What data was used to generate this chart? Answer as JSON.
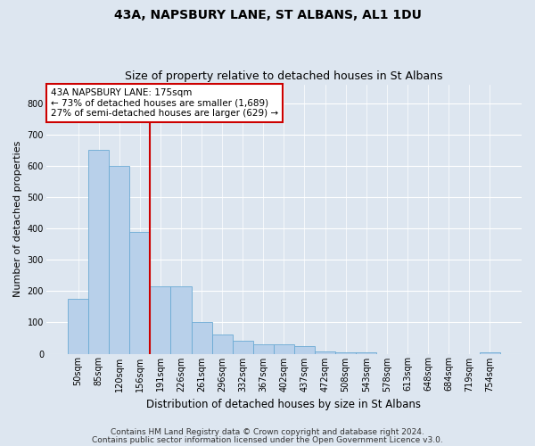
{
  "title": "43A, NAPSBURY LANE, ST ALBANS, AL1 1DU",
  "subtitle": "Size of property relative to detached houses in St Albans",
  "xlabel": "Distribution of detached houses by size in St Albans",
  "ylabel": "Number of detached properties",
  "categories": [
    "50sqm",
    "85sqm",
    "120sqm",
    "156sqm",
    "191sqm",
    "226sqm",
    "261sqm",
    "296sqm",
    "332sqm",
    "367sqm",
    "402sqm",
    "437sqm",
    "472sqm",
    "508sqm",
    "543sqm",
    "578sqm",
    "613sqm",
    "648sqm",
    "684sqm",
    "719sqm",
    "754sqm"
  ],
  "values": [
    175,
    650,
    600,
    390,
    215,
    215,
    100,
    60,
    40,
    30,
    30,
    25,
    8,
    5,
    5,
    0,
    0,
    0,
    0,
    0,
    5
  ],
  "bar_color": "#b8d0ea",
  "bar_edge_color": "#6aaad4",
  "vline_x": 3.5,
  "vline_color": "#cc0000",
  "annotation_text": "43A NAPSBURY LANE: 175sqm\n← 73% of detached houses are smaller (1,689)\n27% of semi-detached houses are larger (629) →",
  "annotation_box_color": "#ffffff",
  "annotation_box_edge_color": "#cc0000",
  "ylim": [
    0,
    860
  ],
  "yticks": [
    0,
    100,
    200,
    300,
    400,
    500,
    600,
    700,
    800
  ],
  "footer1": "Contains HM Land Registry data © Crown copyright and database right 2024.",
  "footer2": "Contains public sector information licensed under the Open Government Licence v3.0.",
  "bg_color": "#dde6f0",
  "plot_bg_color": "#dde6f0",
  "title_fontsize": 10,
  "subtitle_fontsize": 9,
  "ylabel_fontsize": 8,
  "xlabel_fontsize": 8.5,
  "tick_fontsize": 7,
  "footer_fontsize": 6.5,
  "annotation_fontsize": 7.5
}
